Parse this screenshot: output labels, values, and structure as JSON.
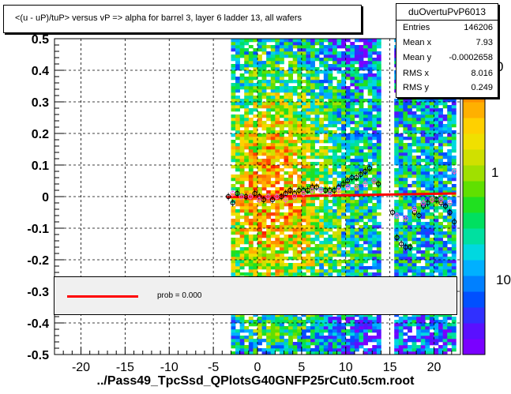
{
  "title": "<(u - uP)/tuP> versus   vP => alpha for barrel 3, layer 6 ladder 13, all wafers",
  "stats": {
    "name": "duOvertuPvP6013",
    "rows": [
      {
        "key": "Entries",
        "value": "146206"
      },
      {
        "key": "Mean x",
        "value": "7.93"
      },
      {
        "key": "Mean y",
        "value": "-0.0002658"
      },
      {
        "key": "RMS x",
        "value": "8.016"
      },
      {
        "key": "RMS y",
        "value": "0.249"
      }
    ]
  },
  "legend": {
    "label": "prob = 0.000"
  },
  "colors": {
    "fit_line": "#ff0000",
    "profile_black": "#000000",
    "profile_pink": "#ff66cc"
  },
  "chart_data": {
    "type": "heatmap",
    "title": "<(u - uP)/tuP> versus   vP => alpha for barrel 3, layer 6 ladder 13, all wafers",
    "xlabel": "../Pass49_TpcSsd_QPlotsG40GNFP25rCut0.5cm.root",
    "ylabel": "",
    "xlim": [
      -23,
      23
    ],
    "ylim": [
      -0.5,
      0.5
    ],
    "x_ticks": [
      -20,
      -15,
      -10,
      -5,
      0,
      5,
      10,
      15,
      20
    ],
    "y_ticks": [
      -0.5,
      -0.4,
      -0.3,
      -0.2,
      -0.1,
      0,
      0.1,
      0.2,
      0.3,
      0.4,
      0.5
    ],
    "z_scale": "log",
    "z_ticks": [
      "10",
      "1",
      "0"
    ],
    "grid": true,
    "occupied_x_ranges": [
      [
        -3,
        14
      ],
      [
        15.5,
        22.5
      ]
    ],
    "fit_line": {
      "x": [
        -3.5,
        22.5
      ],
      "y": [
        -0.002,
        0.01
      ]
    },
    "profile_black": {
      "x": [
        -3.3,
        -2.8,
        -2.3,
        -1.8,
        -1.3,
        -0.8,
        -0.3,
        0.2,
        0.7,
        1.2,
        1.7,
        2.2,
        2.7,
        3.2,
        3.7,
        4.2,
        4.7,
        5.2,
        5.7,
        6.2,
        6.7,
        7.2,
        7.7,
        8.2,
        8.7,
        9.2,
        9.7,
        10.2,
        10.7,
        11.2,
        11.7,
        12.2,
        12.7,
        13.2,
        13.7,
        15.3,
        15.8,
        16.3,
        16.8,
        17.3,
        17.8,
        18.3,
        18.8,
        19.3,
        19.8,
        20.3,
        20.8,
        21.3,
        21.8,
        22.3
      ],
      "y": [
        0.0,
        -0.02,
        0.01,
        0.0,
        0.0,
        0.0,
        0.01,
        0.0,
        -0.01,
        0.0,
        -0.01,
        0.0,
        0.0,
        0.01,
        0.02,
        0.01,
        0.02,
        0.02,
        0.02,
        0.03,
        0.03,
        0.02,
        0.02,
        0.02,
        0.02,
        0.03,
        0.04,
        0.05,
        0.06,
        0.06,
        0.07,
        0.08,
        0.09,
        0.05,
        0.04,
        -0.05,
        -0.13,
        -0.15,
        -0.16,
        -0.16,
        -0.05,
        -0.06,
        -0.03,
        -0.02,
        -0.01,
        -0.01,
        -0.02,
        -0.03,
        -0.05,
        -0.08
      ]
    },
    "profile_pink": {
      "x": [
        -2.8,
        -1.8,
        -0.8,
        0.2,
        1.2,
        2.2,
        3.2,
        4.2,
        5.2,
        6.2,
        7.2,
        8.2,
        9.2,
        10.2,
        11.2,
        12.2,
        13.2,
        15.8,
        16.8,
        17.8,
        18.8,
        19.8,
        20.8,
        21.8,
        22.3
      ],
      "y": [
        0.01,
        0.0,
        0.0,
        -0.01,
        0.0,
        0.0,
        -0.01,
        0.0,
        0.01,
        0.02,
        0.02,
        0.01,
        0.02,
        0.03,
        0.03,
        0.04,
        0.05,
        -0.06,
        -0.07,
        -0.04,
        -0.02,
        -0.01,
        -0.01,
        -0.02,
        0.08
      ]
    }
  }
}
